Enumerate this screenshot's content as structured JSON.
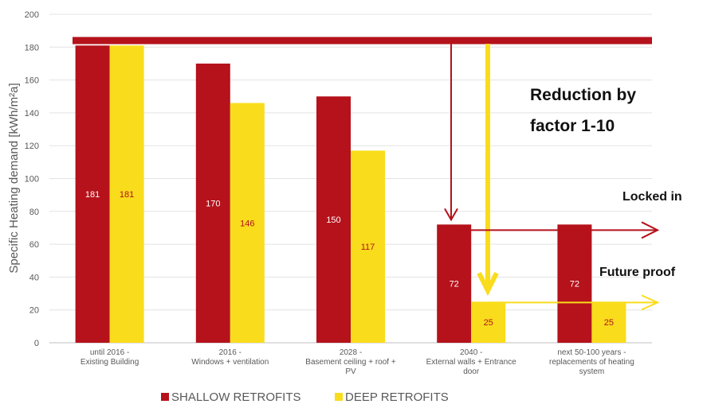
{
  "chart_data": {
    "type": "bar",
    "title": "",
    "xlabel": "",
    "ylabel": "Specific Heating demand [kWh/m²a]",
    "ylim": [
      0,
      200
    ],
    "yticks": [
      0,
      20,
      40,
      60,
      80,
      100,
      120,
      140,
      160,
      180,
      200
    ],
    "grid": true,
    "legend_position": "bottom",
    "categories": [
      [
        "until 2016 -",
        "Existing Building"
      ],
      [
        "2016 -",
        "Windows + ventilation"
      ],
      [
        "2028 -",
        "Basement ceiling + roof +",
        "PV"
      ],
      [
        "2040 -",
        "External walls + Entrance",
        "door"
      ],
      [
        "next 50-100 years -",
        "replacements of heating",
        "system"
      ]
    ],
    "series": [
      {
        "name": "SHALLOW RETROFITS",
        "color": "#B5121B",
        "label_color": "#ffffff",
        "values": [
          181,
          170,
          150,
          72,
          72
        ]
      },
      {
        "name": "DEEP RETROFITS",
        "color": "#F9DC1C",
        "label_color": "#B5121B",
        "values": [
          181,
          146,
          117,
          25,
          25
        ]
      }
    ],
    "annotations": {
      "baseline_value": 184,
      "reduction_text": [
        "Reduction by",
        "factor 1-10"
      ],
      "locked_in_text": "Locked in",
      "future_proof_text": "Future proof",
      "red_color": "#B5121B",
      "yellow_color": "#F9DC1C"
    }
  }
}
